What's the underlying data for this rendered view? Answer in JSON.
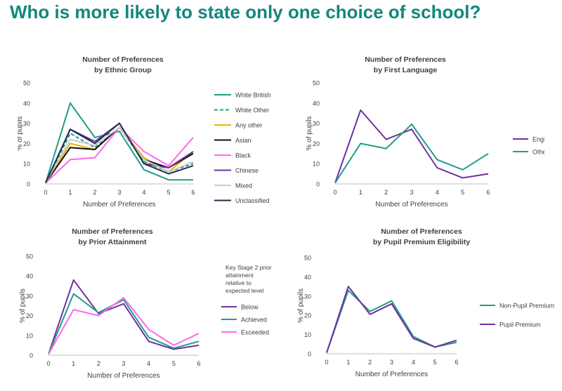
{
  "page": {
    "title": "Who is more likely to state only one choice of school?"
  },
  "chart_data": [
    {
      "type": "line",
      "title": [
        "Number of Preferences",
        "by Ethnic Group"
      ],
      "xlabel": "Number of Preferences",
      "ylabel": "% of pupils",
      "x": [
        0,
        1,
        2,
        3,
        4,
        5,
        6
      ],
      "ylim": [
        0,
        50
      ],
      "yticks": [
        0,
        10,
        20,
        30,
        40,
        50
      ],
      "grid": false,
      "legend": "right",
      "series": [
        {
          "name": "White British",
          "color": "#1f9e89",
          "dash": "",
          "values": [
            0.5,
            40,
            23,
            26,
            7,
            2,
            2
          ]
        },
        {
          "name": "White Other",
          "color": "#1f9e89",
          "dash": "5,3",
          "values": [
            0.5,
            25,
            18,
            28,
            11,
            6,
            10
          ]
        },
        {
          "name": "Any other",
          "color": "#f0b400",
          "dash": "",
          "values": [
            0.5,
            20,
            17,
            28,
            13,
            6,
            16
          ]
        },
        {
          "name": "Asian",
          "color": "#111111",
          "dash": "",
          "values": [
            0.5,
            18,
            17,
            28,
            12,
            8,
            15
          ]
        },
        {
          "name": "Black",
          "color": "#ff66ee",
          "dash": "",
          "values": [
            0.5,
            12,
            13,
            28,
            16,
            9,
            23
          ]
        },
        {
          "name": "Chinese",
          "color": "#7030a0",
          "dash": "",
          "values": [
            0.5,
            27,
            21,
            30,
            10,
            8,
            16
          ]
        },
        {
          "name": "Mixed",
          "color": "#cccccc",
          "dash": "",
          "values": [
            0.5,
            22,
            19,
            28,
            12,
            6,
            11
          ]
        },
        {
          "name": "Unclassified",
          "color": "#1f2d4d",
          "dash": "",
          "values": [
            0.5,
            27,
            20,
            30,
            10,
            5,
            9
          ]
        }
      ]
    },
    {
      "type": "line",
      "title": [
        "Number of Preferences",
        "by First Language"
      ],
      "xlabel": "Number of Preferences",
      "ylabel": "% of pupils",
      "x": [
        0,
        1,
        2,
        3,
        4,
        5,
        6
      ],
      "ylim": [
        0,
        50
      ],
      "yticks": [
        0,
        10,
        20,
        30,
        40,
        50
      ],
      "grid": false,
      "legend": "right",
      "series": [
        {
          "name": "English",
          "color": "#7030a0",
          "dash": "",
          "values": [
            0.5,
            36.5,
            22,
            27,
            8,
            3,
            5
          ]
        },
        {
          "name": "Other",
          "color": "#1f9e89",
          "dash": "",
          "values": [
            0.5,
            20,
            17.5,
            29.5,
            12,
            7,
            15
          ]
        }
      ]
    },
    {
      "type": "line",
      "title": [
        "Number of Preferences",
        "by Prior Attainment"
      ],
      "xlabel": "Number of Preferences",
      "ylabel": "% of pupils",
      "x": [
        0,
        1,
        2,
        3,
        4,
        5,
        6
      ],
      "ylim": [
        0,
        50
      ],
      "yticks": [
        0,
        10,
        20,
        30,
        40,
        50
      ],
      "grid": false,
      "legend": "right",
      "legend_title": [
        "Key Stage 2 prior",
        "attainment",
        "relative to",
        "expected level"
      ],
      "series": [
        {
          "name": "Below",
          "color": "#7030a0",
          "dash": "",
          "values": [
            0.5,
            38,
            21,
            26,
            7,
            3,
            5
          ]
        },
        {
          "name": "Achieved",
          "color": "#1f9e89",
          "dash": "",
          "values": [
            0.5,
            31,
            21.5,
            28,
            9,
            3.5,
            7
          ]
        },
        {
          "name": "Exceeded",
          "color": "#ff66ee",
          "dash": "",
          "values": [
            0.5,
            23,
            20,
            29,
            13,
            5,
            11
          ]
        }
      ]
    },
    {
      "type": "line",
      "title": [
        "Number of Preferences",
        "by Pupil Premium Eligibility"
      ],
      "xlabel": "Number of Preferences",
      "ylabel": "% of pupils",
      "x": [
        0,
        1,
        2,
        3,
        4,
        5,
        6
      ],
      "ylim": [
        0,
        50
      ],
      "yticks": [
        0,
        10,
        20,
        30,
        40,
        50
      ],
      "grid": false,
      "legend": "right",
      "series": [
        {
          "name": "Non-Pupil Premium",
          "color": "#1f9e89",
          "dash": "",
          "values": [
            0.5,
            33,
            22,
            27.5,
            9,
            3.5,
            6
          ]
        },
        {
          "name": "Pupil Premium",
          "color": "#7030a0",
          "dash": "",
          "values": [
            0.5,
            35,
            20.5,
            26,
            8,
            3.5,
            7
          ]
        }
      ]
    }
  ]
}
